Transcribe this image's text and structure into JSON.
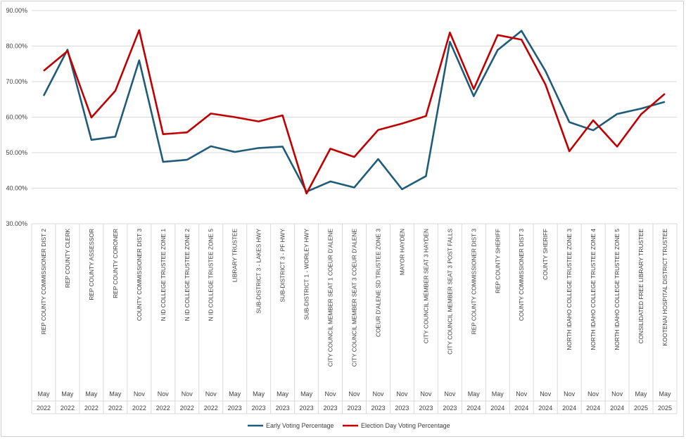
{
  "chart_data": {
    "type": "line",
    "title": "",
    "xlabel": "",
    "ylabel": "",
    "ylim": [
      30,
      90
    ],
    "yticks": [
      "30.00%",
      "40.00%",
      "50.00%",
      "60.00%",
      "70.00%",
      "80.00%",
      "90.00%"
    ],
    "grid": true,
    "legend_position": "bottom",
    "categories": [
      {
        "label": "REP COUNTY COMMISSIONER DIST 2",
        "month": "May",
        "year": "2022"
      },
      {
        "label": "REP COUNTY CLERK",
        "month": "May",
        "year": "2022"
      },
      {
        "label": "REP COUNTY ASSESSOR",
        "month": "May",
        "year": "2022"
      },
      {
        "label": "REP COUNTY CORONER",
        "month": "May",
        "year": "2022"
      },
      {
        "label": "COUNTY COMMISSIONER DIST 3",
        "month": "Nov",
        "year": "2022"
      },
      {
        "label": "N ID COLLEGE TRUSTEE ZONE 1",
        "month": "Nov",
        "year": "2022"
      },
      {
        "label": "N ID COLLEGE TRUSTEE ZONE 2",
        "month": "Nov",
        "year": "2022"
      },
      {
        "label": "N ID COLLEGE TRUSTEE ZONE 5",
        "month": "Nov",
        "year": "2022"
      },
      {
        "label": "LIBRARY TRUSTEE",
        "month": "May",
        "year": "2023"
      },
      {
        "label": "SUB-DISTRICT 3 - LAKES HWY",
        "month": "May",
        "year": "2023"
      },
      {
        "label": "SUB-DISTRICT 3 - PF HWY",
        "month": "May",
        "year": "2023"
      },
      {
        "label": "SUB-DISTRICT 1 - WORLEY HWY",
        "month": "May",
        "year": "2023"
      },
      {
        "label": "CITY COUNCIL MEMBER SEAT 1 COEUR D'ALENE",
        "month": "Nov",
        "year": "2023"
      },
      {
        "label": "CITY COUNCIL MEMBER SEAT 3 COEUR D'ALENE",
        "month": "Nov",
        "year": "2023"
      },
      {
        "label": "COEUR D'ALENE SD TRUSTEE ZONE 3",
        "month": "Nov",
        "year": "2023"
      },
      {
        "label": "MAYOR HAYDEN",
        "month": "Nov",
        "year": "2023"
      },
      {
        "label": "CITY COUNCIL MEMBER SEAT 3 HAYDEN",
        "month": "Nov",
        "year": "2023"
      },
      {
        "label": "CITY COUNCIL MEMBER SEAT 3 POST FALLS",
        "month": "Nov",
        "year": "2023"
      },
      {
        "label": "REP COUNTY COMMISSIONER DIST 3",
        "month": "May",
        "year": "2024"
      },
      {
        "label": "REP COUNTY SHERIFF",
        "month": "May",
        "year": "2024"
      },
      {
        "label": "COUNTY COMMISSIONER DIST 3",
        "month": "Nov",
        "year": "2024"
      },
      {
        "label": "COUNTY SHERIFF",
        "month": "Nov",
        "year": "2024"
      },
      {
        "label": "NORTH IDAHO COLLEGE TRUSTEE ZONE 3",
        "month": "Nov",
        "year": "2024"
      },
      {
        "label": "NORTH IDAHO COLLEGE TRUSTEE ZONE 4",
        "month": "Nov",
        "year": "2024"
      },
      {
        "label": "NORTH IDAHO COLLEGE TRUSTEE ZONE 5",
        "month": "Nov",
        "year": "2024"
      },
      {
        "label": "CONSILIDATED FREE LIBRARY TRUSTEE",
        "month": "May",
        "year": "2025"
      },
      {
        "label": "KOOTENAI HOSPITAL DISTRICT TRUSTEE",
        "month": "May",
        "year": "2025"
      }
    ],
    "series": [
      {
        "name": "Early Voting Percentage",
        "color": "#1f5c7a",
        "values": [
          66.0,
          79.0,
          53.6,
          54.5,
          76.0,
          47.4,
          48.0,
          51.8,
          50.2,
          51.3,
          51.7,
          39.0,
          41.9,
          40.2,
          48.2,
          39.7,
          43.4,
          81.2,
          65.9,
          78.9,
          84.3,
          73.0,
          58.6,
          56.3,
          60.9,
          62.4,
          64.3
        ]
      },
      {
        "name": "Election Day Voting Percentage",
        "color": "#c00000",
        "values": [
          73.0,
          78.6,
          59.9,
          67.4,
          84.5,
          55.2,
          55.7,
          61.0,
          60.0,
          58.8,
          60.5,
          38.5,
          51.1,
          48.8,
          56.4,
          58.2,
          60.3,
          83.8,
          67.9,
          83.1,
          81.8,
          69.2,
          50.4,
          59.1,
          51.7,
          60.8,
          66.6
        ]
      }
    ]
  }
}
